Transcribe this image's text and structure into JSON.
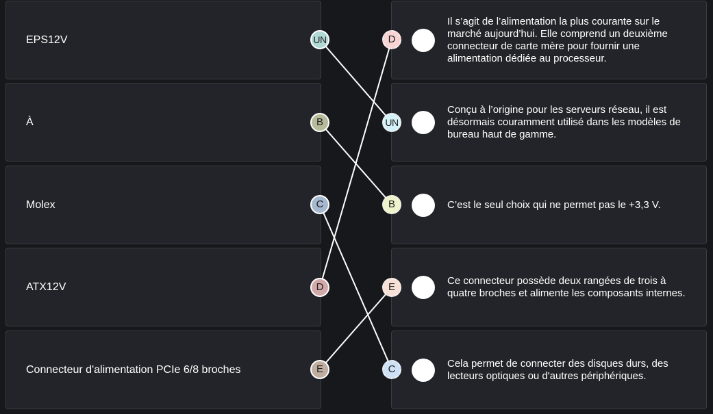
{
  "left_items": [
    {
      "label": "EPS12V",
      "badge": "UN",
      "badge_color": "#b0d9d6"
    },
    {
      "label": "À",
      "badge": "B",
      "badge_color": "#b7bb9a"
    },
    {
      "label": "Molex",
      "badge": "C",
      "badge_color": "#a5b8cf"
    },
    {
      "label": "ATX12V",
      "badge": "D",
      "badge_color": "#d2a9a9"
    },
    {
      "label": "Connecteur d'alimentation PCIe 6/8 broches",
      "badge": "E",
      "badge_color": "#bfada0"
    }
  ],
  "right_items": [
    {
      "badge": "D",
      "badge_color": "#f8d4d4",
      "text": "Il s’agit de l’alimentation la plus courante sur le marché aujourd’hui. Elle comprend un deuxième connecteur de carte mère pour fournir une alimentation dédiée au processeur."
    },
    {
      "badge": "UN",
      "badge_color": "#d4f2f7",
      "text": "Conçu à l’origine pour les serveurs réseau, il est désormais couramment utilisé dans les modèles de bureau haut de gamme."
    },
    {
      "badge": "B",
      "badge_color": "#eef3cc",
      "text": "C’est le seul choix qui ne permet pas le +3,3 V."
    },
    {
      "badge": "E",
      "badge_color": "#f8e0d6",
      "text": "Ce connecteur possède deux rangées de trois à quatre broches et alimente les composants internes."
    },
    {
      "badge": "C",
      "badge_color": "#cfe1f7",
      "text": "Cela permet de connecter des disques durs, des lecteurs optiques ou d'autres périphériques."
    }
  ],
  "connections": [
    {
      "from": 0,
      "to": 1
    },
    {
      "from": 1,
      "to": 2
    },
    {
      "from": 2,
      "to": 4
    },
    {
      "from": 3,
      "to": 0
    },
    {
      "from": 4,
      "to": 3
    }
  ],
  "line_color": "#ffffff"
}
